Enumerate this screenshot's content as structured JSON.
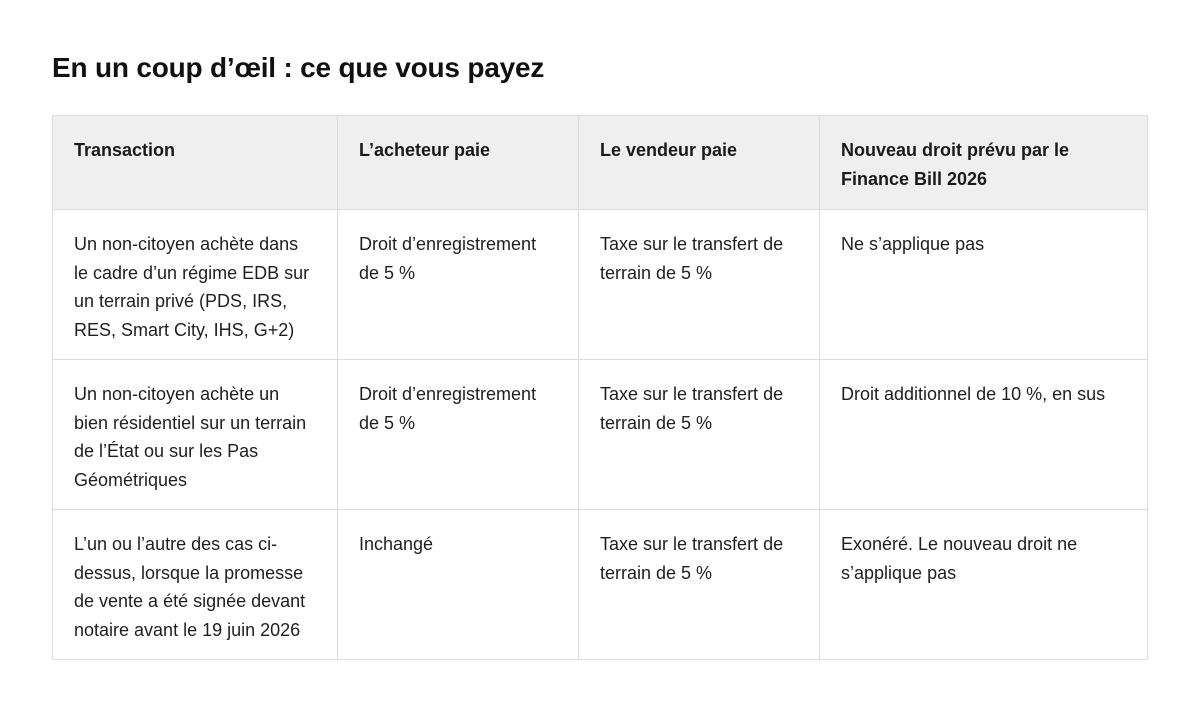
{
  "heading": "En un coup d’œil : ce que vous payez",
  "table": {
    "headers": [
      "Transaction",
      "L’acheteur paie",
      "Le vendeur paie",
      "Nouveau droit prévu par le Finance Bill 2026"
    ],
    "rows": [
      [
        "Un non-citoyen achète dans le cadre d’un régime EDB sur un terrain privé (PDS, IRS, RES, Smart City, IHS, G+2)",
        "Droit d’enregistrement de 5 %",
        "Taxe sur le transfert de terrain de 5 %",
        "Ne s’applique pas"
      ],
      [
        "Un non-citoyen achète un bien résidentiel sur un terrain de l’État ou sur les Pas Géométriques",
        "Droit d’enregistrement de 5 %",
        "Taxe sur le transfert de terrain de 5 %",
        "Droit additionnel de 10 %, en sus"
      ],
      [
        "L’un ou l’autre des cas ci-dessus, lorsque la promesse de vente a été signée devant notaire avant le 19 juin 2026",
        "Inchangé",
        "Taxe sur le transfert de terrain de 5 %",
        "Exonéré. Le nouveau droit ne s’applique pas"
      ]
    ]
  }
}
